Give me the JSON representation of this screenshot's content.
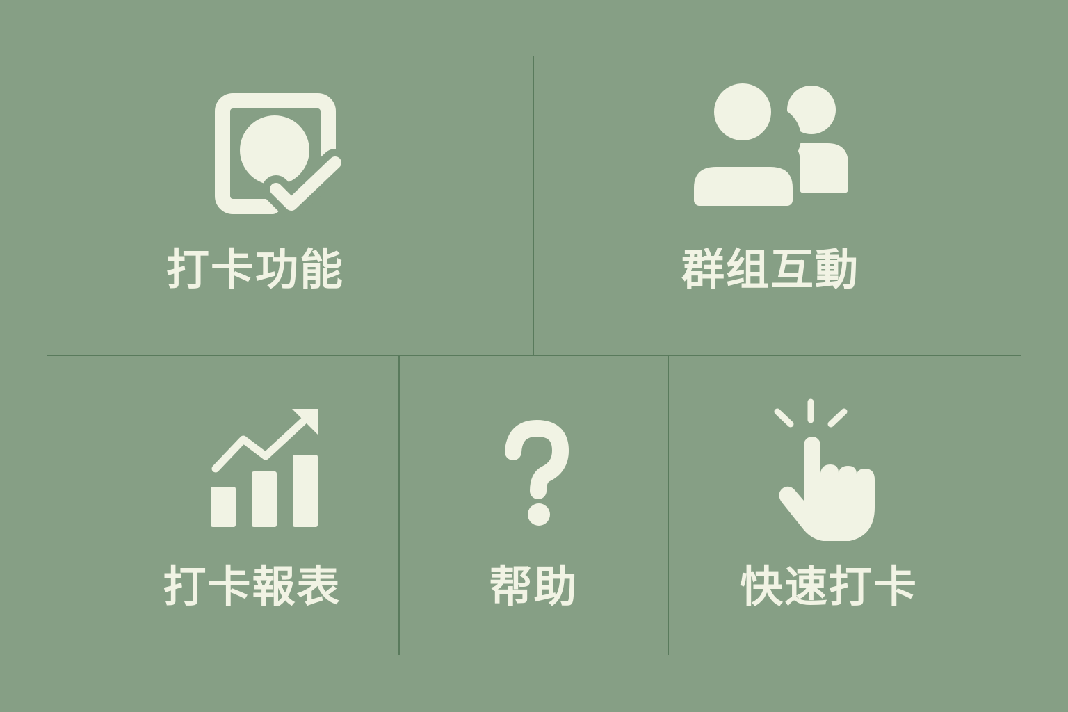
{
  "menu": {
    "items": [
      {
        "label": "打卡功能",
        "icon": "checkin-photo-icon"
      },
      {
        "label": "群组互動",
        "icon": "group-users-icon"
      },
      {
        "label": "打卡報表",
        "icon": "growth-chart-icon"
      },
      {
        "label": "帮助",
        "icon": "question-mark-icon"
      },
      {
        "label": "快速打卡",
        "icon": "tap-hand-icon"
      }
    ]
  },
  "colors": {
    "background": "#869f85",
    "foreground": "#f1f3e4",
    "divider": "#597a5c"
  }
}
